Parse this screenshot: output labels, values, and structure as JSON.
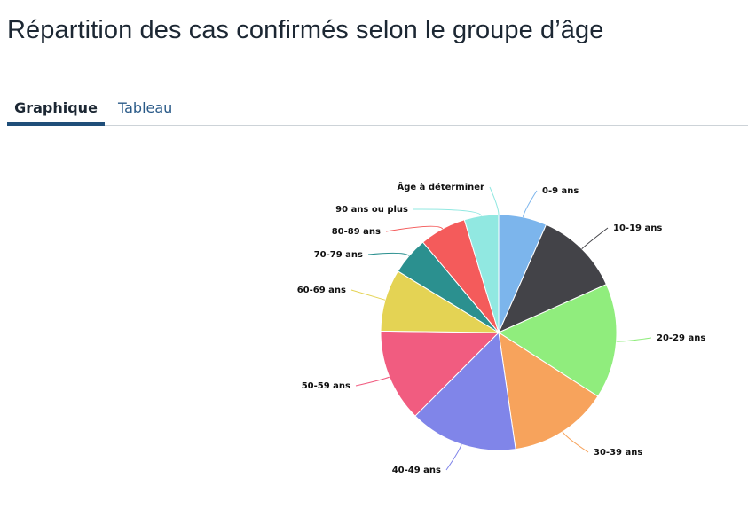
{
  "page": {
    "title": "Répartition des cas confirmés selon le groupe d’âge"
  },
  "tabs": [
    {
      "label": "Graphique",
      "active": true
    },
    {
      "label": "Tableau",
      "active": false
    }
  ],
  "chart_data": {
    "type": "pie",
    "title": "",
    "start_angle_deg": 0,
    "direction": "clockwise",
    "slice_border_color": "#ffffff",
    "categories": [
      "0-9 ans",
      "10-19 ans",
      "20-29 ans",
      "30-39 ans",
      "40-49 ans",
      "50-59 ans",
      "60-69 ans",
      "70-79 ans",
      "80-89 ans",
      "90 ans ou plus",
      "Âge à déterminer"
    ],
    "values": [
      6.6,
      11.7,
      15.8,
      13.6,
      14.8,
      12.7,
      8.5,
      5.2,
      6.4,
      4.7,
      0.0
    ],
    "colors": [
      "#7cb5ec",
      "#434348",
      "#90ed7d",
      "#f7a35c",
      "#8085e9",
      "#f15c80",
      "#e4d354",
      "#2b908f",
      "#f45b5b",
      "#91e8e1",
      "#91e8e1"
    ]
  }
}
